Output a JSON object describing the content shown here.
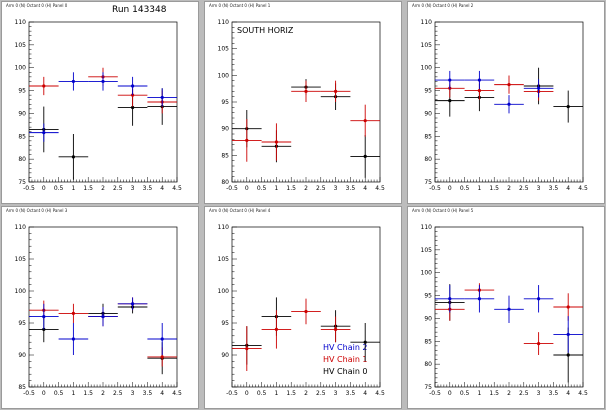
{
  "colors": {
    "chain0": "#000000",
    "chain1": "#cc0000",
    "chain2": "#0000cc"
  },
  "chart_data": [
    {
      "type": "scatter",
      "pad_title": "Arm 0 (N) Octant 0 (H) Panel 0",
      "annotation": "Run 143348",
      "x_ticks": [
        "-0.5",
        "0",
        "0.5",
        "1",
        "1.5",
        "2",
        "2.5",
        "3",
        "3.5",
        "4",
        "4.5"
      ],
      "y_ticks": [
        "75",
        "80",
        "85",
        "90",
        "95",
        "100",
        "105",
        "110"
      ],
      "xlim": [
        -0.5,
        4.5
      ],
      "ylim": [
        75,
        110
      ],
      "series": [
        {
          "color_key": "chain0",
          "points": [
            {
              "x": 0.0,
              "y": 86.5,
              "xerr": 0.5,
              "yerr": 5.0
            },
            {
              "x": 1.0,
              "y": 80.5,
              "xerr": 0.5,
              "yerr": 5.0
            },
            {
              "x": 3.0,
              "y": 91.3,
              "xerr": 0.5,
              "yerr": 4.0
            },
            {
              "x": 4.0,
              "y": 91.5,
              "xerr": 0.5,
              "yerr": 4.0
            }
          ]
        },
        {
          "color_key": "chain1",
          "points": [
            {
              "x": 0.0,
              "y": 96.0,
              "xerr": 0.5,
              "yerr": 2.0
            },
            {
              "x": 2.0,
              "y": 98.0,
              "xerr": 0.5,
              "yerr": 2.0
            },
            {
              "x": 3.0,
              "y": 94.0,
              "xerr": 0.5,
              "yerr": 2.5
            },
            {
              "x": 4.0,
              "y": 92.5,
              "xerr": 0.5,
              "yerr": 2.5
            }
          ]
        },
        {
          "color_key": "chain2",
          "points": [
            {
              "x": 0.0,
              "y": 85.8,
              "xerr": 0.5,
              "yerr": 2.0
            },
            {
              "x": 1.0,
              "y": 97.0,
              "xerr": 0.5,
              "yerr": 2.0
            },
            {
              "x": 2.0,
              "y": 97.0,
              "xerr": 0.5,
              "yerr": 2.0
            },
            {
              "x": 3.0,
              "y": 96.0,
              "xerr": 0.5,
              "yerr": 2.0
            },
            {
              "x": 4.0,
              "y": 93.5,
              "xerr": 0.5,
              "yerr": 2.0
            }
          ]
        }
      ]
    },
    {
      "type": "scatter",
      "pad_title": "Arm 0 (N) Octant 0 (H) Panel 1",
      "annotation": "SOUTH HORIZ",
      "x_ticks": [
        "-0.5",
        "0",
        "0.5",
        "1",
        "1.5",
        "2",
        "2.5",
        "3",
        "3.5",
        "4",
        "4.5"
      ],
      "y_ticks": [
        "80",
        "85",
        "90",
        "95",
        "100",
        "105",
        "110"
      ],
      "xlim": [
        -0.5,
        4.5
      ],
      "ylim": [
        80,
        110
      ],
      "series": [
        {
          "color_key": "chain0",
          "points": [
            {
              "x": 0.0,
              "y": 90.0,
              "xerr": 0.5,
              "yerr": 3.5
            },
            {
              "x": 1.0,
              "y": 86.7,
              "xerr": 0.5,
              "yerr": 3.0
            },
            {
              "x": 2.0,
              "y": 97.8,
              "xerr": 0.5,
              "yerr": 1.5
            },
            {
              "x": 3.0,
              "y": 96.0,
              "xerr": 0.5,
              "yerr": 2.5
            },
            {
              "x": 4.0,
              "y": 84.8,
              "xerr": 0.5,
              "yerr": 4.0
            }
          ]
        },
        {
          "color_key": "chain1",
          "points": [
            {
              "x": 0.0,
              "y": 87.8,
              "xerr": 0.5,
              "yerr": 4.0
            },
            {
              "x": 1.0,
              "y": 87.5,
              "xerr": 0.5,
              "yerr": 3.5
            },
            {
              "x": 2.0,
              "y": 97.0,
              "xerr": 0.5,
              "yerr": 2.0
            },
            {
              "x": 3.0,
              "y": 97.0,
              "xerr": 0.5,
              "yerr": 2.0
            },
            {
              "x": 4.0,
              "y": 91.5,
              "xerr": 0.5,
              "yerr": 3.0
            }
          ]
        }
      ]
    },
    {
      "type": "scatter",
      "pad_title": "Arm 0 (N) Octant 0 (H) Panel 2",
      "annotation": "",
      "x_ticks": [
        "-0.5",
        "0",
        "0.5",
        "1",
        "1.5",
        "2",
        "2.5",
        "3",
        "3.5",
        "4",
        "4.5"
      ],
      "y_ticks": [
        "75",
        "80",
        "85",
        "90",
        "95",
        "100",
        "105",
        "110"
      ],
      "xlim": [
        -0.5,
        4.5
      ],
      "ylim": [
        75,
        110
      ],
      "series": [
        {
          "color_key": "chain0",
          "points": [
            {
              "x": 0.0,
              "y": 92.8,
              "xerr": 0.5,
              "yerr": 3.5
            },
            {
              "x": 1.0,
              "y": 93.5,
              "xerr": 0.5,
              "yerr": 3.0
            },
            {
              "x": 3.0,
              "y": 96.0,
              "xerr": 0.5,
              "yerr": 4.0
            },
            {
              "x": 4.0,
              "y": 91.5,
              "xerr": 0.5,
              "yerr": 3.5
            }
          ]
        },
        {
          "color_key": "chain1",
          "points": [
            {
              "x": 0.0,
              "y": 95.5,
              "xerr": 0.5,
              "yerr": 2.0
            },
            {
              "x": 1.0,
              "y": 95.0,
              "xerr": 0.5,
              "yerr": 2.0
            },
            {
              "x": 2.0,
              "y": 96.3,
              "xerr": 0.5,
              "yerr": 2.0
            },
            {
              "x": 3.0,
              "y": 94.8,
              "xerr": 0.5,
              "yerr": 2.0
            }
          ]
        },
        {
          "color_key": "chain2",
          "points": [
            {
              "x": 0.0,
              "y": 97.3,
              "xerr": 0.5,
              "yerr": 2.0
            },
            {
              "x": 1.0,
              "y": 97.3,
              "xerr": 0.5,
              "yerr": 2.0
            },
            {
              "x": 2.0,
              "y": 92.0,
              "xerr": 0.5,
              "yerr": 2.0
            },
            {
              "x": 3.0,
              "y": 95.5,
              "xerr": 0.5,
              "yerr": 2.0
            }
          ]
        }
      ]
    },
    {
      "type": "scatter",
      "pad_title": "Arm 0 (N) Octant 0 (H) Panel 3",
      "annotation": "",
      "x_ticks": [
        "-0.5",
        "0",
        "0.5",
        "1",
        "1.5",
        "2",
        "2.5",
        "3",
        "3.5",
        "4",
        "4.5"
      ],
      "y_ticks": [
        "85",
        "90",
        "95",
        "100",
        "105",
        "110"
      ],
      "xlim": [
        -0.5,
        4.5
      ],
      "ylim": [
        85,
        110
      ],
      "series": [
        {
          "color_key": "chain0",
          "points": [
            {
              "x": 0.0,
              "y": 94.0,
              "xerr": 0.5,
              "yerr": 2.0
            },
            {
              "x": 2.0,
              "y": 96.5,
              "xerr": 0.5,
              "yerr": 1.5
            },
            {
              "x": 3.0,
              "y": 97.5,
              "xerr": 0.5,
              "yerr": 1.0
            },
            {
              "x": 4.0,
              "y": 89.5,
              "xerr": 0.5,
              "yerr": 2.5
            }
          ]
        },
        {
          "color_key": "chain1",
          "points": [
            {
              "x": 0.0,
              "y": 97.0,
              "xerr": 0.5,
              "yerr": 1.5
            },
            {
              "x": 1.0,
              "y": 96.5,
              "xerr": 0.5,
              "yerr": 1.5
            },
            {
              "x": 2.0,
              "y": 96.0,
              "xerr": 0.5,
              "yerr": 1.5
            },
            {
              "x": 3.0,
              "y": 98.0,
              "xerr": 0.5,
              "yerr": 1.0
            },
            {
              "x": 4.0,
              "y": 89.7,
              "xerr": 0.5,
              "yerr": 1.5
            }
          ]
        },
        {
          "color_key": "chain2",
          "points": [
            {
              "x": 0.0,
              "y": 96.0,
              "xerr": 0.5,
              "yerr": 2.0
            },
            {
              "x": 1.0,
              "y": 92.5,
              "xerr": 0.5,
              "yerr": 2.5
            },
            {
              "x": 2.0,
              "y": 96.0,
              "xerr": 0.5,
              "yerr": 1.5
            },
            {
              "x": 3.0,
              "y": 98.0,
              "xerr": 0.5,
              "yerr": 1.0
            },
            {
              "x": 4.0,
              "y": 92.5,
              "xerr": 0.5,
              "yerr": 2.5
            }
          ]
        }
      ]
    },
    {
      "type": "scatter",
      "pad_title": "Arm 0 (N) Octant 0 (H) Panel 4",
      "annotation": "",
      "x_ticks": [
        "-0.5",
        "0",
        "0.5",
        "1",
        "1.5",
        "2",
        "2.5",
        "3",
        "3.5",
        "4",
        "4.5"
      ],
      "y_ticks": [
        "90",
        "95",
        "100",
        "105",
        "110"
      ],
      "xlim": [
        -0.5,
        4.5
      ],
      "ylim": [
        85,
        110
      ],
      "legend": [
        "HV Chain 2",
        "HV Chain 1",
        "HV Chain 0"
      ],
      "series": [
        {
          "color_key": "chain0",
          "points": [
            {
              "x": 0.0,
              "y": 91.5,
              "xerr": 0.5,
              "yerr": 3.0
            },
            {
              "x": 1.0,
              "y": 96.0,
              "xerr": 0.5,
              "yerr": 3.0
            },
            {
              "x": 3.0,
              "y": 94.5,
              "xerr": 0.5,
              "yerr": 2.5
            },
            {
              "x": 4.0,
              "y": 92.0,
              "xerr": 0.5,
              "yerr": 3.0
            }
          ]
        },
        {
          "color_key": "chain1",
          "points": [
            {
              "x": 0.0,
              "y": 91.0,
              "xerr": 0.5,
              "yerr": 3.5
            },
            {
              "x": 1.0,
              "y": 94.0,
              "xerr": 0.5,
              "yerr": 3.0
            },
            {
              "x": 2.0,
              "y": 96.8,
              "xerr": 0.5,
              "yerr": 2.0
            },
            {
              "x": 3.0,
              "y": 94.0,
              "xerr": 0.5,
              "yerr": 2.0
            }
          ]
        }
      ]
    },
    {
      "type": "scatter",
      "pad_title": "Arm 0 (N) Octant 0 (H) Panel 5",
      "annotation": "",
      "x_ticks": [
        "-0.5",
        "0",
        "0.5",
        "1",
        "1.5",
        "2",
        "2.5",
        "3",
        "3.5",
        "4",
        "4.5"
      ],
      "y_ticks": [
        "75",
        "80",
        "85",
        "90",
        "95",
        "100",
        "105",
        "110"
      ],
      "xlim": [
        -0.5,
        4.5
      ],
      "ylim": [
        75,
        110
      ],
      "series": [
        {
          "color_key": "chain0",
          "points": [
            {
              "x": 0.0,
              "y": 93.5,
              "xerr": 0.5,
              "yerr": 4.0
            },
            {
              "x": 4.0,
              "y": 82.0,
              "xerr": 0.5,
              "yerr": 6.0
            }
          ]
        },
        {
          "color_key": "chain1",
          "points": [
            {
              "x": 0.0,
              "y": 92.0,
              "xerr": 0.5,
              "yerr": 2.5
            },
            {
              "x": 1.0,
              "y": 96.2,
              "xerr": 0.5,
              "yerr": 1.5
            },
            {
              "x": 3.0,
              "y": 84.5,
              "xerr": 0.5,
              "yerr": 2.5
            },
            {
              "x": 4.0,
              "y": 92.5,
              "xerr": 0.5,
              "yerr": 3.0
            }
          ]
        },
        {
          "color_key": "chain2",
          "points": [
            {
              "x": 0.0,
              "y": 94.3,
              "xerr": 0.5,
              "yerr": 3.0
            },
            {
              "x": 1.0,
              "y": 94.3,
              "xerr": 0.5,
              "yerr": 3.0
            },
            {
              "x": 2.0,
              "y": 92.0,
              "xerr": 0.5,
              "yerr": 3.0
            },
            {
              "x": 3.0,
              "y": 94.3,
              "xerr": 0.5,
              "yerr": 3.0
            },
            {
              "x": 4.0,
              "y": 86.5,
              "xerr": 0.5,
              "yerr": 4.0
            }
          ]
        }
      ]
    }
  ]
}
